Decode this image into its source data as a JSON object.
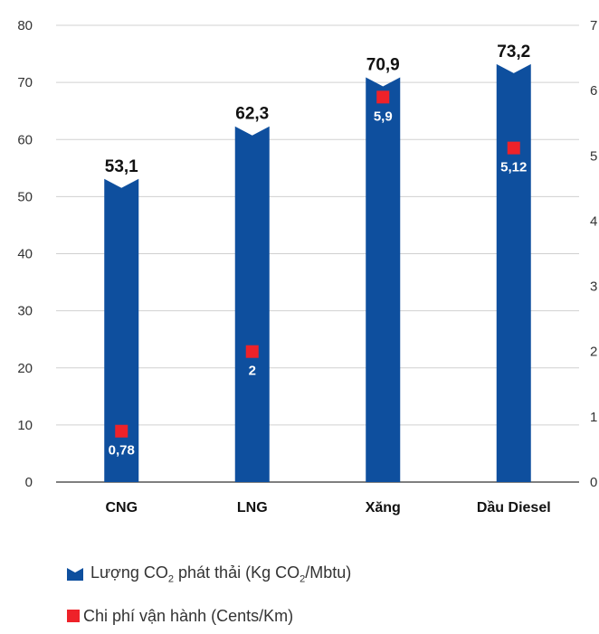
{
  "chart_data": {
    "type": "bar",
    "categories": [
      "CNG",
      "LNG",
      "Xăng",
      "Dầu Diesel"
    ],
    "series": [
      {
        "name": "Lượng CO2 phát thải (Kg CO2/Mbtu)",
        "axis": "left",
        "values": [
          53.1,
          62.3,
          70.9,
          73.2
        ],
        "labels": [
          "53,1",
          "62,3",
          "70,9",
          "73,2"
        ]
      },
      {
        "name": "Chi phí vận hành (Cents/Km)",
        "axis": "right",
        "mark": "square",
        "values": [
          0.78,
          2,
          5.9,
          5.12
        ],
        "labels": [
          "0,78",
          "2",
          "5,9",
          "5,12"
        ]
      }
    ],
    "y_left": {
      "min": 0,
      "max": 80,
      "ticks": [
        0,
        10,
        20,
        30,
        40,
        50,
        60,
        70,
        80
      ]
    },
    "y_right": {
      "min": 0,
      "max": 7,
      "ticks": [
        0,
        1,
        2,
        3,
        4,
        5,
        6,
        7
      ]
    },
    "grid": true,
    "legend_position": "bottom-left",
    "colors": {
      "bar": "#0e4f9e",
      "marker": "#ee2229",
      "grid": "#d0d0d0",
      "axis": "#555555"
    }
  },
  "legend": {
    "co2": {
      "prefix": "Lượng CO",
      "sub1": "2",
      "middle": " phát thải (Kg CO",
      "sub2": "2",
      "suffix": "/Mbtu)"
    },
    "cost": {
      "text": "Chi phí vận hành (Cents/Km)"
    }
  }
}
